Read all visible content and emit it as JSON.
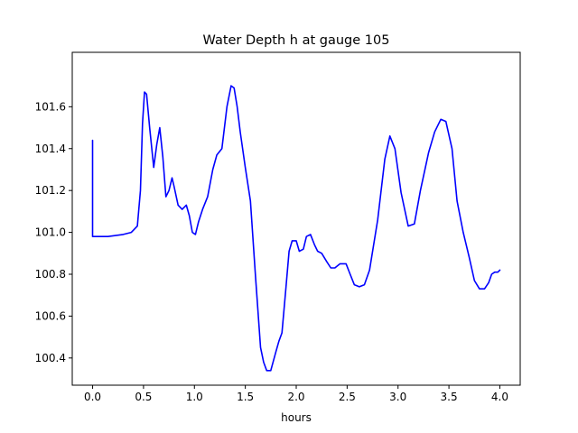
{
  "chart_data": {
    "type": "line",
    "title": "Water Depth h at gauge 105",
    "xlabel": "hours",
    "ylabel": "",
    "xlim": [
      -0.2,
      4.2
    ],
    "ylim": [
      100.27,
      101.86
    ],
    "xticks": [
      0.0,
      0.5,
      1.0,
      1.5,
      2.0,
      2.5,
      3.0,
      3.5,
      4.0
    ],
    "xtick_labels": [
      "0.0",
      "0.5",
      "1.0",
      "1.5",
      "2.0",
      "2.5",
      "3.0",
      "3.5",
      "4.0"
    ],
    "yticks": [
      100.4,
      100.6,
      100.8,
      101.0,
      101.2,
      101.4,
      101.6
    ],
    "ytick_labels": [
      "100.4",
      "100.6",
      "100.8",
      "101.0",
      "101.2",
      "101.4",
      "101.6"
    ],
    "grid": false,
    "legend": false,
    "series": [
      {
        "color": "#0000ff",
        "x": [
          0.0,
          0.0,
          0.05,
          0.15,
          0.3,
          0.38,
          0.44,
          0.47,
          0.49,
          0.51,
          0.53,
          0.56,
          0.6,
          0.63,
          0.66,
          0.69,
          0.72,
          0.75,
          0.78,
          0.8,
          0.84,
          0.88,
          0.92,
          0.95,
          0.98,
          1.01,
          1.04,
          1.08,
          1.13,
          1.18,
          1.22,
          1.27,
          1.32,
          1.36,
          1.39,
          1.42,
          1.45,
          1.5,
          1.55,
          1.6,
          1.65,
          1.68,
          1.71,
          1.75,
          1.8,
          1.83,
          1.86,
          1.9,
          1.93,
          1.96,
          2.0,
          2.03,
          2.07,
          2.1,
          2.14,
          2.18,
          2.21,
          2.25,
          2.3,
          2.34,
          2.38,
          2.43,
          2.49,
          2.53,
          2.57,
          2.62,
          2.67,
          2.72,
          2.8,
          2.87,
          2.92,
          2.97,
          3.03,
          3.1,
          3.16,
          3.22,
          3.3,
          3.36,
          3.42,
          3.47,
          3.53,
          3.58,
          3.64,
          3.7,
          3.75,
          3.8,
          3.85,
          3.89,
          3.92,
          3.95,
          3.98,
          4.0
        ],
        "y": [
          101.44,
          100.98,
          100.98,
          100.98,
          100.99,
          101.0,
          101.03,
          101.2,
          101.52,
          101.67,
          101.66,
          101.5,
          101.31,
          101.42,
          101.5,
          101.36,
          101.17,
          101.2,
          101.26,
          101.22,
          101.13,
          101.11,
          101.13,
          101.08,
          101.0,
          100.99,
          101.05,
          101.11,
          101.17,
          101.3,
          101.37,
          101.4,
          101.6,
          101.7,
          101.69,
          101.6,
          101.48,
          101.31,
          101.15,
          100.79,
          100.45,
          100.38,
          100.34,
          100.34,
          100.43,
          100.48,
          100.52,
          100.74,
          100.91,
          100.96,
          100.96,
          100.91,
          100.92,
          100.98,
          100.99,
          100.94,
          100.91,
          100.9,
          100.86,
          100.83,
          100.83,
          100.85,
          100.85,
          100.8,
          100.75,
          100.74,
          100.75,
          100.82,
          101.06,
          101.35,
          101.46,
          101.4,
          101.19,
          101.03,
          101.04,
          101.2,
          101.38,
          101.48,
          101.54,
          101.53,
          101.4,
          101.15,
          101.0,
          100.88,
          100.77,
          100.73,
          100.73,
          100.76,
          100.8,
          100.81,
          100.81,
          100.82
        ]
      }
    ]
  }
}
